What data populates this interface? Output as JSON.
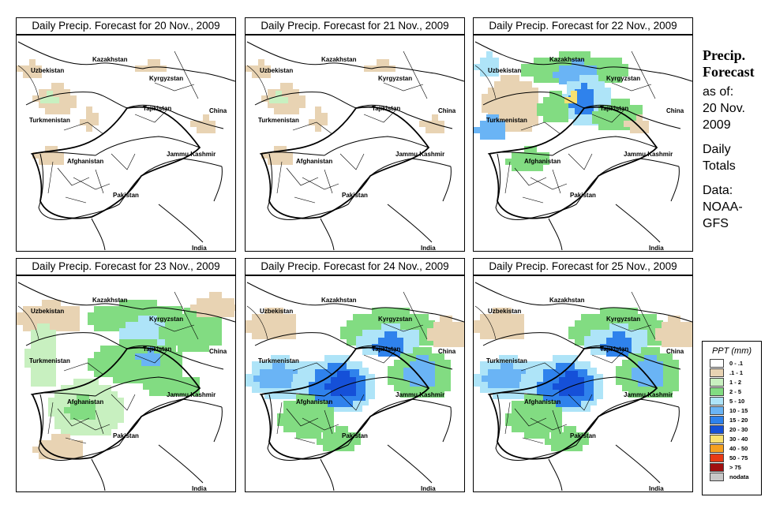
{
  "panels": [
    {
      "title": "Daily Precip. Forecast for  20 Nov., 2009",
      "intensity": 0
    },
    {
      "title": "Daily Precip. Forecast for  21 Nov., 2009",
      "intensity": 0
    },
    {
      "title": "Daily Precip. Forecast for  22 Nov., 2009",
      "intensity": 2
    },
    {
      "title": "Daily Precip. Forecast for  23 Nov., 2009",
      "intensity": 1
    },
    {
      "title": "Daily Precip. Forecast for  24 Nov., 2009",
      "intensity": 3
    },
    {
      "title": "Daily Precip. Forecast for  25 Nov., 2009",
      "intensity": 3
    }
  ],
  "map_labels": {
    "kazakhstan": "Kazakhstan",
    "uzbekistan": "Uzbekistan",
    "kyrgyzstan": "Kyrgyzstan",
    "tajikistan": "Tajikistan",
    "turkmenistan": "Turkmenistan",
    "china": "China",
    "afghanistan": "Afghanistan",
    "jammu_kashmir": "Jammu Kashmir",
    "pakistan": "Pakistan",
    "india": "India"
  },
  "side": {
    "title_line1": "Precip.",
    "title_line2": "Forecast",
    "asof_line1": "as of:",
    "asof_line2": "20 Nov.",
    "asof_line3": "2009",
    "daily_line1": "Daily",
    "daily_line2": "Totals",
    "data_line1": "Data:",
    "data_line2": "NOAA-",
    "data_line3": "GFS"
  },
  "legend": {
    "title": "PPT (mm)",
    "items": [
      {
        "label": "0 - .1",
        "color": "#ffffff"
      },
      {
        "label": ".1 - 1",
        "color": "#e8d3b3"
      },
      {
        "label": "1 - 2",
        "color": "#c8f0c0"
      },
      {
        "label": "2 - 5",
        "color": "#82dc82"
      },
      {
        "label": "5 - 10",
        "color": "#aee4f8"
      },
      {
        "label": "10 - 15",
        "color": "#6ab4f5"
      },
      {
        "label": "15 - 20",
        "color": "#2f82ec"
      },
      {
        "label": "20 - 30",
        "color": "#1550d8"
      },
      {
        "label": "30 - 40",
        "color": "#f8e070"
      },
      {
        "label": "40 - 50",
        "color": "#f5a020"
      },
      {
        "label": "50 - 75",
        "color": "#e83a14"
      },
      {
        "label": "> 75",
        "color": "#a01010"
      },
      {
        "label": "nodata",
        "color": "#c8c8c8"
      }
    ]
  }
}
